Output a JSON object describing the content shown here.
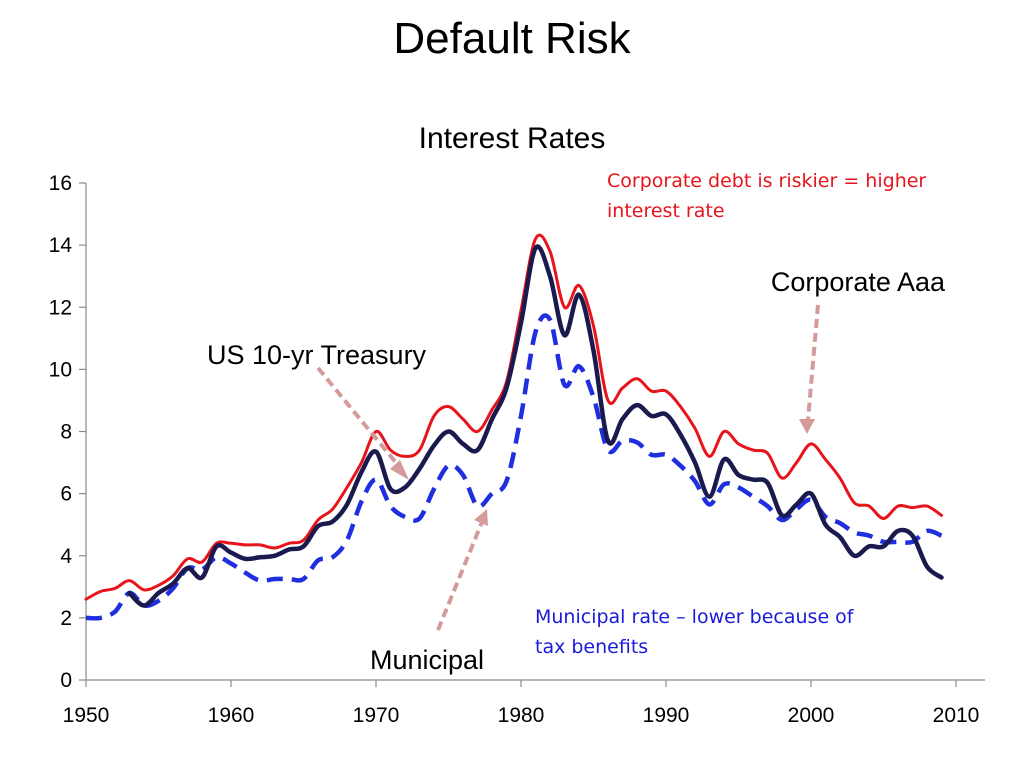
{
  "slide": {
    "title": "Default Risk"
  },
  "colors": {
    "corporate": "#e8141b",
    "treasury": "#1a1a4e",
    "municipal": "#1f2fe0",
    "arrow": "#d59a9a",
    "note_red": "#e8141b",
    "note_blue": "#1a1adc"
  },
  "chart_data": {
    "type": "line",
    "title": "Interest Rates",
    "xlabel": "",
    "ylabel": "",
    "xlim": [
      1950,
      2012
    ],
    "ylim": [
      0,
      16
    ],
    "x_ticks": [
      1950,
      1960,
      1970,
      1980,
      1990,
      2000,
      2010
    ],
    "y_ticks": [
      0,
      2,
      4,
      6,
      8,
      10,
      12,
      14,
      16
    ],
    "grid": false,
    "legend": "none",
    "series": [
      {
        "name": "Corporate Aaa",
        "color": "#e8141b",
        "style": "solid",
        "points": [
          [
            1950,
            2.6
          ],
          [
            1951,
            2.85
          ],
          [
            1952,
            2.95
          ],
          [
            1953,
            3.2
          ],
          [
            1954,
            2.9
          ],
          [
            1955,
            3.05
          ],
          [
            1956,
            3.35
          ],
          [
            1957,
            3.9
          ],
          [
            1958,
            3.8
          ],
          [
            1959,
            4.4
          ],
          [
            1960,
            4.4
          ],
          [
            1961,
            4.35
          ],
          [
            1962,
            4.35
          ],
          [
            1963,
            4.25
          ],
          [
            1964,
            4.4
          ],
          [
            1965,
            4.5
          ],
          [
            1966,
            5.15
          ],
          [
            1967,
            5.5
          ],
          [
            1968,
            6.2
          ],
          [
            1969,
            7.0
          ],
          [
            1970,
            8.0
          ],
          [
            1971,
            7.4
          ],
          [
            1972,
            7.2
          ],
          [
            1973,
            7.4
          ],
          [
            1974,
            8.5
          ],
          [
            1975,
            8.8
          ],
          [
            1976,
            8.4
          ],
          [
            1977,
            8.0
          ],
          [
            1978,
            8.7
          ],
          [
            1979,
            9.6
          ],
          [
            1980,
            11.9
          ],
          [
            1981,
            14.2
          ],
          [
            1982,
            13.8
          ],
          [
            1983,
            12.0
          ],
          [
            1984,
            12.7
          ],
          [
            1985,
            11.4
          ],
          [
            1986,
            9.0
          ],
          [
            1987,
            9.4
          ],
          [
            1988,
            9.7
          ],
          [
            1989,
            9.3
          ],
          [
            1990,
            9.3
          ],
          [
            1991,
            8.8
          ],
          [
            1992,
            8.1
          ],
          [
            1993,
            7.2
          ],
          [
            1994,
            8.0
          ],
          [
            1995,
            7.6
          ],
          [
            1996,
            7.4
          ],
          [
            1997,
            7.3
          ],
          [
            1998,
            6.5
          ],
          [
            1999,
            7.0
          ],
          [
            2000,
            7.6
          ],
          [
            2001,
            7.1
          ],
          [
            2002,
            6.5
          ],
          [
            2003,
            5.7
          ],
          [
            2004,
            5.6
          ],
          [
            2005,
            5.2
          ],
          [
            2006,
            5.6
          ],
          [
            2007,
            5.55
          ],
          [
            2008,
            5.6
          ],
          [
            2009,
            5.3
          ]
        ]
      },
      {
        "name": "US 10-yr Treasury",
        "color": "#1a1a4e",
        "style": "solid",
        "points": [
          [
            1953,
            2.8
          ],
          [
            1954,
            2.4
          ],
          [
            1955,
            2.8
          ],
          [
            1956,
            3.1
          ],
          [
            1957,
            3.6
          ],
          [
            1958,
            3.3
          ],
          [
            1959,
            4.3
          ],
          [
            1960,
            4.1
          ],
          [
            1961,
            3.9
          ],
          [
            1962,
            3.95
          ],
          [
            1963,
            4.0
          ],
          [
            1964,
            4.2
          ],
          [
            1965,
            4.3
          ],
          [
            1966,
            4.95
          ],
          [
            1967,
            5.1
          ],
          [
            1968,
            5.65
          ],
          [
            1969,
            6.7
          ],
          [
            1970,
            7.35
          ],
          [
            1971,
            6.15
          ],
          [
            1972,
            6.2
          ],
          [
            1973,
            6.8
          ],
          [
            1974,
            7.55
          ],
          [
            1975,
            8.0
          ],
          [
            1976,
            7.6
          ],
          [
            1977,
            7.4
          ],
          [
            1978,
            8.4
          ],
          [
            1979,
            9.4
          ],
          [
            1980,
            11.5
          ],
          [
            1981,
            13.9
          ],
          [
            1982,
            13.0
          ],
          [
            1983,
            11.1
          ],
          [
            1984,
            12.4
          ],
          [
            1985,
            10.6
          ],
          [
            1986,
            7.7
          ],
          [
            1987,
            8.4
          ],
          [
            1988,
            8.85
          ],
          [
            1989,
            8.5
          ],
          [
            1990,
            8.55
          ],
          [
            1991,
            7.9
          ],
          [
            1992,
            7.0
          ],
          [
            1993,
            5.9
          ],
          [
            1994,
            7.1
          ],
          [
            1995,
            6.6
          ],
          [
            1996,
            6.45
          ],
          [
            1997,
            6.35
          ],
          [
            1998,
            5.3
          ],
          [
            1999,
            5.65
          ],
          [
            2000,
            6.0
          ],
          [
            2001,
            5.0
          ],
          [
            2002,
            4.6
          ],
          [
            2003,
            4.0
          ],
          [
            2004,
            4.3
          ],
          [
            2005,
            4.3
          ],
          [
            2006,
            4.8
          ],
          [
            2007,
            4.65
          ],
          [
            2008,
            3.65
          ],
          [
            2009,
            3.3
          ]
        ]
      },
      {
        "name": "Municipal",
        "color": "#1f2fe0",
        "style": "dashed",
        "points": [
          [
            1950,
            2.0
          ],
          [
            1951,
            2.0
          ],
          [
            1952,
            2.2
          ],
          [
            1953,
            2.8
          ],
          [
            1954,
            2.4
          ],
          [
            1955,
            2.55
          ],
          [
            1956,
            2.95
          ],
          [
            1957,
            3.6
          ],
          [
            1958,
            3.55
          ],
          [
            1959,
            3.95
          ],
          [
            1960,
            3.75
          ],
          [
            1961,
            3.45
          ],
          [
            1962,
            3.2
          ],
          [
            1963,
            3.25
          ],
          [
            1964,
            3.25
          ],
          [
            1965,
            3.25
          ],
          [
            1966,
            3.85
          ],
          [
            1967,
            3.95
          ],
          [
            1968,
            4.5
          ],
          [
            1969,
            5.75
          ],
          [
            1970,
            6.45
          ],
          [
            1971,
            5.6
          ],
          [
            1972,
            5.25
          ],
          [
            1973,
            5.2
          ],
          [
            1974,
            6.15
          ],
          [
            1975,
            6.9
          ],
          [
            1976,
            6.6
          ],
          [
            1977,
            5.6
          ],
          [
            1978,
            6.0
          ],
          [
            1979,
            6.4
          ],
          [
            1980,
            8.5
          ],
          [
            1981,
            11.2
          ],
          [
            1982,
            11.6
          ],
          [
            1983,
            9.5
          ],
          [
            1984,
            10.1
          ],
          [
            1985,
            9.1
          ],
          [
            1986,
            7.4
          ],
          [
            1987,
            7.7
          ],
          [
            1988,
            7.65
          ],
          [
            1989,
            7.25
          ],
          [
            1990,
            7.25
          ],
          [
            1991,
            6.9
          ],
          [
            1992,
            6.4
          ],
          [
            1993,
            5.65
          ],
          [
            1994,
            6.3
          ],
          [
            1995,
            6.2
          ],
          [
            1996,
            5.9
          ],
          [
            1997,
            5.6
          ],
          [
            1998,
            5.15
          ],
          [
            1999,
            5.5
          ],
          [
            2000,
            5.8
          ],
          [
            2001,
            5.25
          ],
          [
            2002,
            5.05
          ],
          [
            2003,
            4.75
          ],
          [
            2004,
            4.65
          ],
          [
            2005,
            4.45
          ],
          [
            2006,
            4.45
          ],
          [
            2007,
            4.45
          ],
          [
            2008,
            4.8
          ],
          [
            2009,
            4.65
          ]
        ]
      }
    ],
    "annotations": {
      "corporate_label": "Corporate Aaa",
      "treasury_label": "US 10-yr Treasury",
      "municipal_label": "Municipal",
      "corporate_note_lines": [
        "Corporate debt is riskier = higher",
        "interest rate"
      ],
      "municipal_note_lines": [
        "Municipal rate – lower because of",
        "tax benefits"
      ]
    }
  }
}
